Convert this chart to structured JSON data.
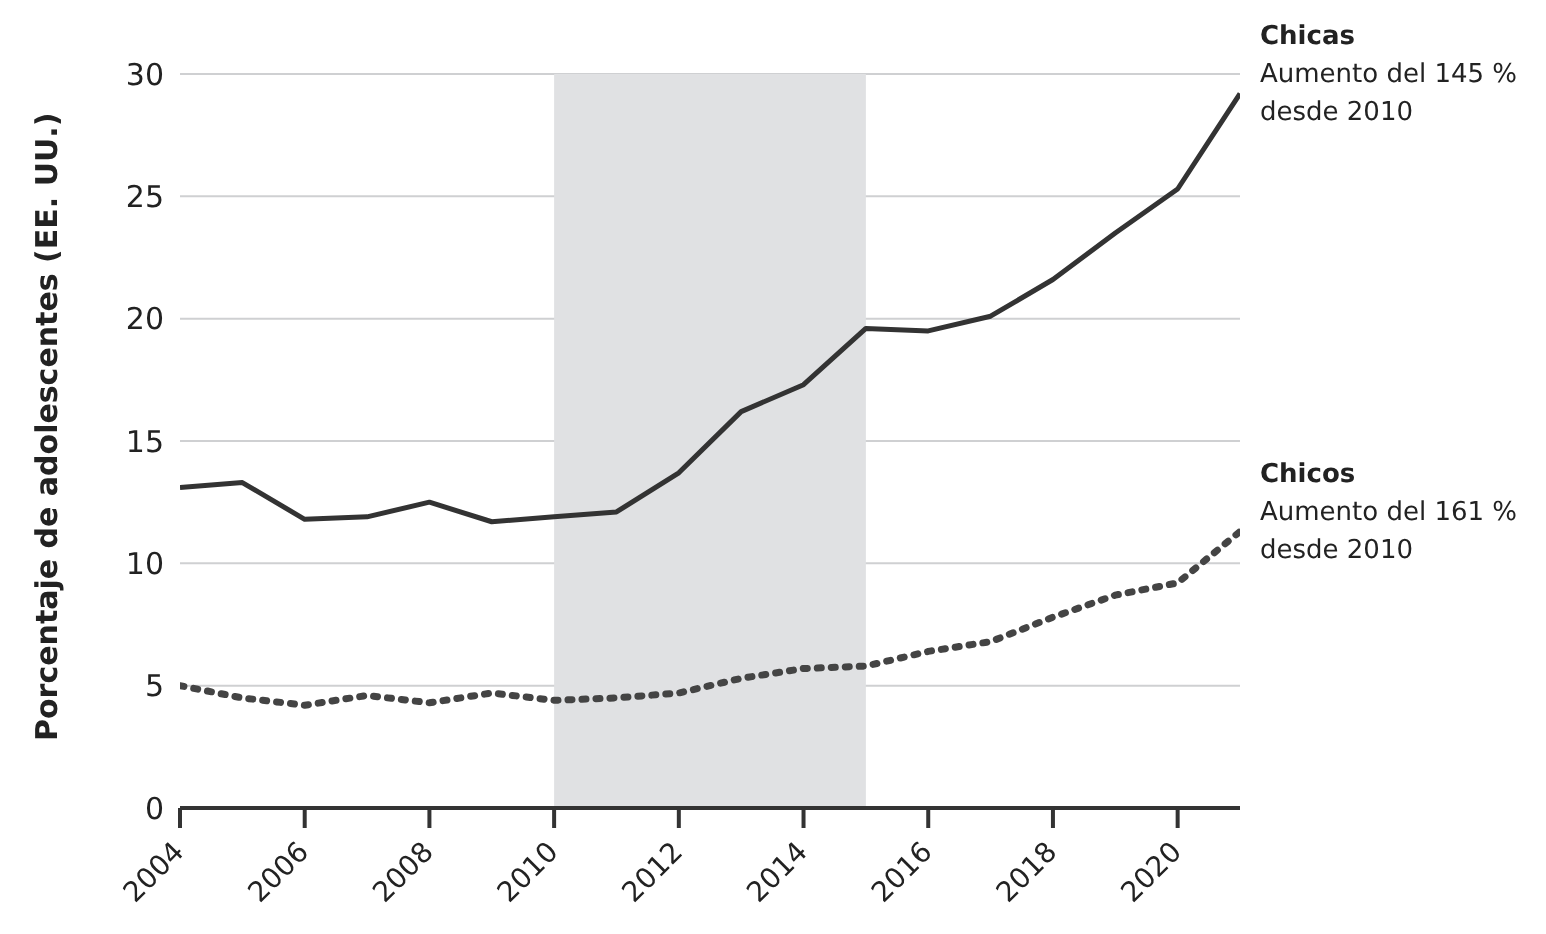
{
  "chart_data": {
    "type": "line",
    "ylabel": "Porcentaje de adolescentes (EE. UU.)",
    "x": [
      2004,
      2005,
      2006,
      2007,
      2008,
      2009,
      2010,
      2011,
      2012,
      2013,
      2014,
      2015,
      2016,
      2017,
      2018,
      2019,
      2020,
      2021
    ],
    "series": [
      {
        "name": "Chicas",
        "color": "#333333",
        "line_style": "solid",
        "values": [
          13.1,
          13.3,
          11.8,
          11.9,
          12.5,
          11.7,
          11.9,
          12.1,
          13.7,
          16.2,
          17.3,
          19.6,
          19.5,
          20.1,
          21.6,
          23.5,
          25.3,
          29.2
        ]
      },
      {
        "name": "Chicos",
        "color": "#444444",
        "line_style": "dotted",
        "values": [
          5.0,
          4.5,
          4.2,
          4.6,
          4.3,
          4.7,
          4.4,
          4.5,
          4.7,
          5.3,
          5.7,
          5.8,
          6.4,
          6.8,
          7.8,
          8.7,
          9.2,
          11.3
        ]
      }
    ],
    "annotations": [
      "Aumento del 145 % desde 2010",
      "Aumento del 161 % desde 2010"
    ],
    "xlim": [
      2004,
      2021
    ],
    "xticks": [
      2004,
      2006,
      2008,
      2010,
      2012,
      2014,
      2016,
      2018,
      2020
    ],
    "ylim": [
      0,
      30
    ],
    "yticks": [
      0,
      5,
      10,
      15,
      20,
      25,
      30
    ],
    "grid": "y",
    "bands": [
      {
        "axis": "x",
        "from": 2010,
        "to": 2015,
        "color": "#e0e1e3"
      }
    ]
  }
}
